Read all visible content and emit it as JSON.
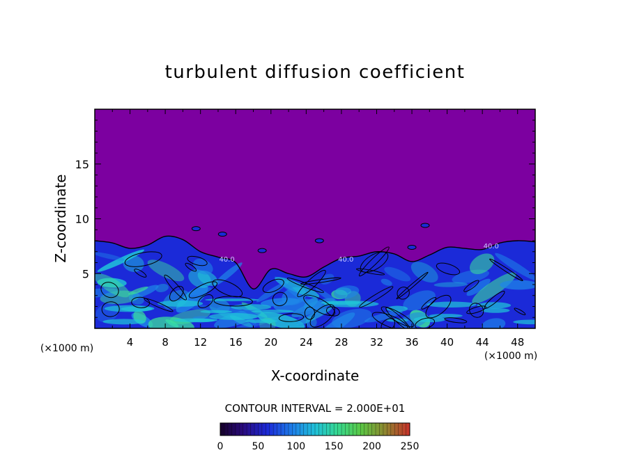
{
  "chart_data": {
    "type": "heatmap",
    "title": "turbulent diffusion coefficient",
    "xlabel": "X-coordinate",
    "ylabel": "Z-coordinate",
    "x_unit": "(×1000 m)",
    "xlim": [
      0,
      50
    ],
    "ylim": [
      0,
      20
    ],
    "xticks": [
      4,
      8,
      12,
      16,
      20,
      24,
      28,
      32,
      36,
      40,
      44,
      48
    ],
    "yticks": [
      5,
      10,
      15
    ],
    "contour_interval_text": "CONTOUR INTERVAL = 2.000E+01",
    "contour_labels": [
      "40.0",
      "40.0",
      "40.0"
    ],
    "colorbar": {
      "min": 0,
      "max": 250,
      "ticks": [
        0,
        50,
        100,
        150,
        200,
        250
      ]
    },
    "background_value": 0,
    "turbulent_layer_top_profile": {
      "x": [
        0,
        2,
        4,
        6,
        8,
        10,
        12,
        14,
        16,
        18,
        20,
        22,
        24,
        26,
        28,
        30,
        32,
        34,
        36,
        38,
        40,
        42,
        44,
        46,
        48,
        50
      ],
      "z": [
        8.0,
        7.8,
        7.3,
        7.6,
        8.4,
        8.1,
        7.0,
        6.5,
        6.0,
        3.6,
        5.4,
        5.0,
        4.7,
        5.6,
        6.4,
        6.6,
        7.0,
        6.8,
        6.1,
        6.7,
        7.4,
        7.3,
        7.2,
        7.8,
        8.0,
        7.9
      ]
    },
    "colors": {
      "background": "#7c00a0",
      "low": "#1b2ad8",
      "mid": "#1e86e8",
      "high": "#20c8d8",
      "peak": "#3de39a"
    }
  }
}
